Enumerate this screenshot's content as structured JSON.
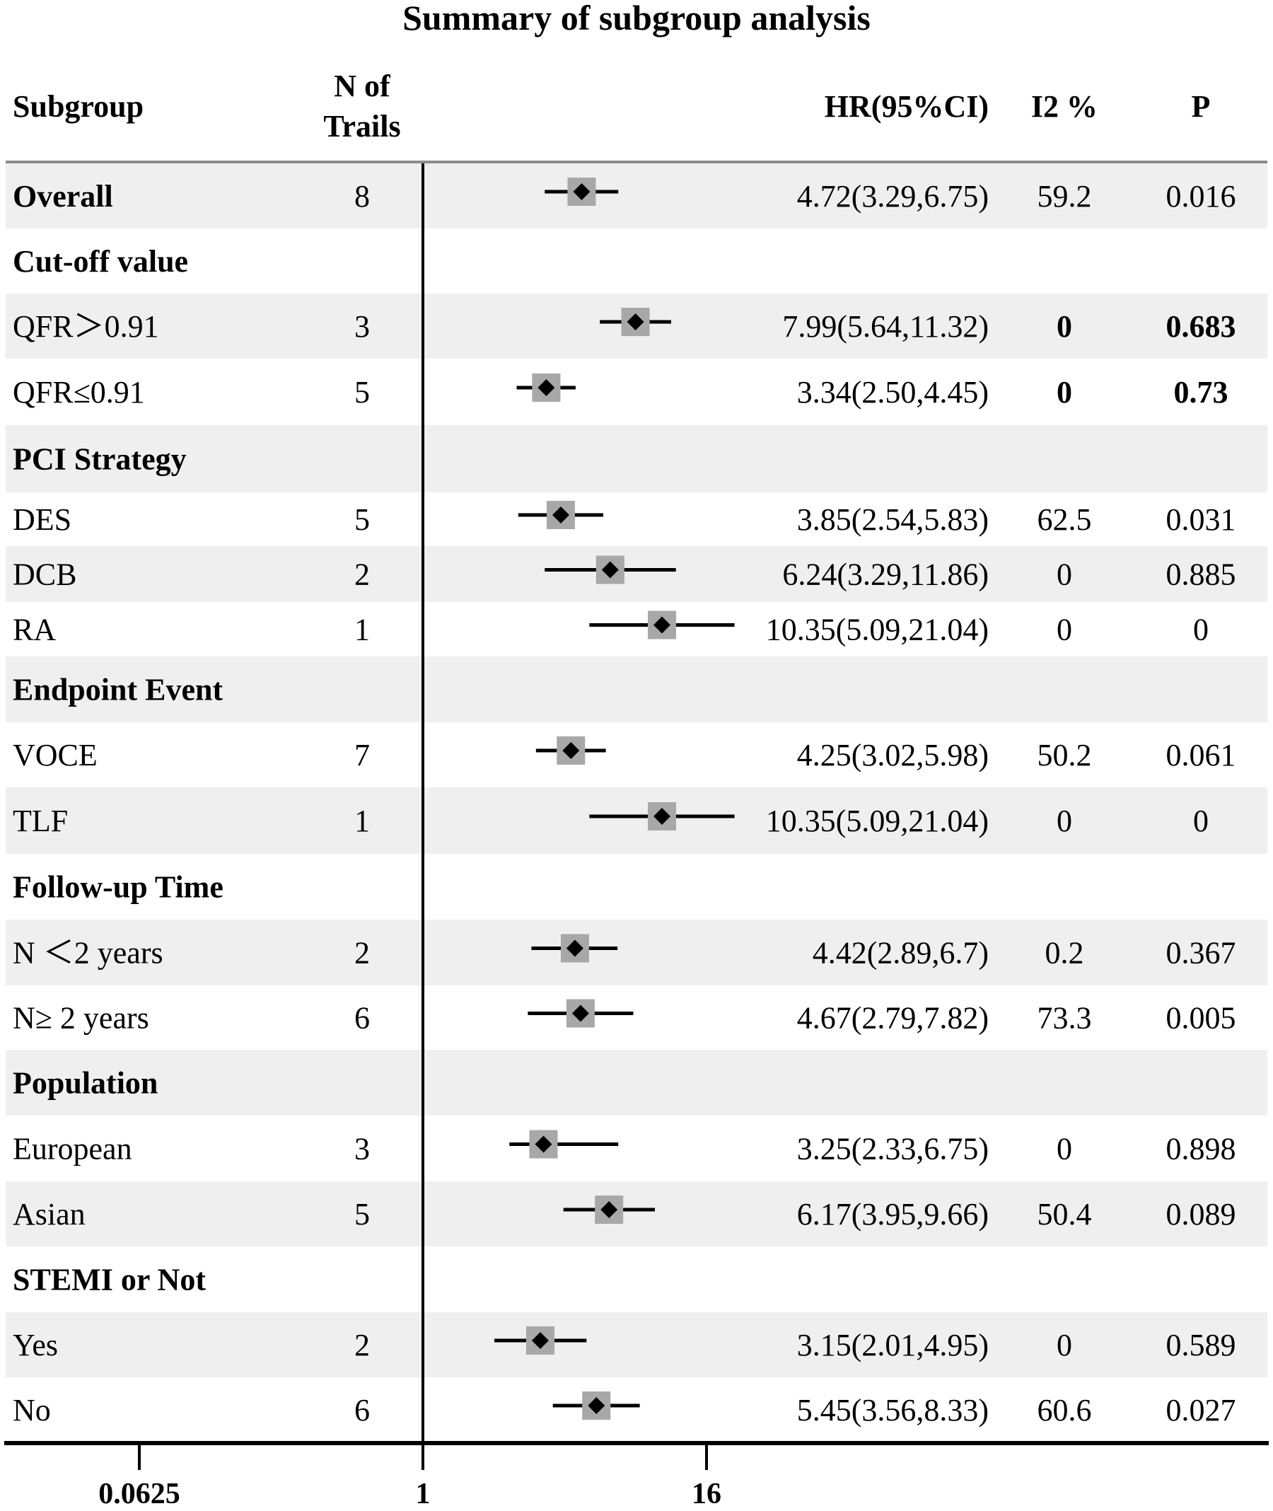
{
  "chart_data": {
    "type": "forest",
    "title": "Summary of subgroup analysis",
    "columns": {
      "subgroup": "Subgroup",
      "n_line1": "N of",
      "n_line2": "Trails",
      "hr": "HR(95%CI)",
      "i2": "I2 %",
      "p": "P"
    },
    "x_axis": {
      "scale": "log2",
      "reference": 1,
      "ticks": [
        "0.0625",
        "1",
        "16"
      ],
      "tick_values": [
        0.0625,
        1,
        16
      ]
    },
    "rows": [
      {
        "label": "Overall",
        "header": false,
        "bold_label": true,
        "n": "8",
        "hr": 4.72,
        "lo": 3.29,
        "hi": 6.75,
        "hr_text": "4.72(3.29,6.75)",
        "i2": "59.2",
        "p": "0.016",
        "bold_stats": false,
        "shaded": true
      },
      {
        "label": "Cut-off value",
        "header": true,
        "shaded": false
      },
      {
        "label": "QFR＞0.91",
        "header": false,
        "n": "3",
        "hr": 7.99,
        "lo": 5.64,
        "hi": 11.32,
        "hr_text": "7.99(5.64,11.32)",
        "i2": "0",
        "p": "0.683",
        "bold_stats": true,
        "shaded": true
      },
      {
        "label": "QFR≤0.91",
        "header": false,
        "n": "5",
        "hr": 3.34,
        "lo": 2.5,
        "hi": 4.45,
        "hr_text": "3.34(2.50,4.45)",
        "i2": "0",
        "p": "0.73",
        "bold_stats": true,
        "shaded": false
      },
      {
        "label": "PCI Strategy",
        "header": true,
        "shaded": true
      },
      {
        "label": "DES",
        "header": false,
        "n": "5",
        "hr": 3.85,
        "lo": 2.54,
        "hi": 5.83,
        "hr_text": "3.85(2.54,5.83)",
        "i2": "62.5",
        "p": "0.031",
        "bold_stats": false,
        "shaded": false
      },
      {
        "label": "DCB",
        "header": false,
        "n": "2",
        "hr": 6.24,
        "lo": 3.29,
        "hi": 11.86,
        "hr_text": "6.24(3.29,11.86)",
        "i2": "0",
        "p": "0.885",
        "bold_stats": false,
        "shaded": true
      },
      {
        "label": "RA",
        "header": false,
        "n": "1",
        "hr": 10.35,
        "lo": 5.09,
        "hi": 21.04,
        "hr_text": "10.35(5.09,21.04)",
        "i2": "0",
        "p": "0",
        "bold_stats": false,
        "shaded": false
      },
      {
        "label": "Endpoint Event",
        "header": true,
        "shaded": true
      },
      {
        "label": "VOCE",
        "header": false,
        "n": "7",
        "hr": 4.25,
        "lo": 3.02,
        "hi": 5.98,
        "hr_text": "4.25(3.02,5.98)",
        "i2": "50.2",
        "p": "0.061",
        "bold_stats": false,
        "shaded": false
      },
      {
        "label": "TLF",
        "header": false,
        "n": "1",
        "hr": 10.35,
        "lo": 5.09,
        "hi": 21.04,
        "hr_text": "10.35(5.09,21.04)",
        "i2": "0",
        "p": "0",
        "bold_stats": false,
        "shaded": true
      },
      {
        "label": "Follow-up Time",
        "header": true,
        "shaded": false
      },
      {
        "label": "N ＜2 years",
        "header": false,
        "n": "2",
        "hr": 4.42,
        "lo": 2.89,
        "hi": 6.7,
        "hr_text": "4.42(2.89,6.7)",
        "i2": "0.2",
        "p": "0.367",
        "bold_stats": false,
        "shaded": true
      },
      {
        "label": "N≥ 2 years",
        "header": false,
        "n": "6",
        "hr": 4.67,
        "lo": 2.79,
        "hi": 7.82,
        "hr_text": "4.67(2.79,7.82)",
        "i2": "73.3",
        "p": "0.005",
        "bold_stats": false,
        "shaded": false
      },
      {
        "label": "Population",
        "header": true,
        "shaded": true
      },
      {
        "label": "European",
        "header": false,
        "n": "3",
        "hr": 3.25,
        "lo": 2.33,
        "hi": 6.75,
        "hr_text": "3.25(2.33,6.75)",
        "i2": "0",
        "p": "0.898",
        "bold_stats": false,
        "shaded": false
      },
      {
        "label": "Asian",
        "header": false,
        "n": "5",
        "hr": 6.17,
        "lo": 3.95,
        "hi": 9.66,
        "hr_text": "6.17(3.95,9.66)",
        "i2": "50.4",
        "p": "0.089",
        "bold_stats": false,
        "shaded": true
      },
      {
        "label": "STEMI or Not",
        "header": true,
        "shaded": false
      },
      {
        "label": "Yes",
        "header": false,
        "n": "2",
        "hr": 3.15,
        "lo": 2.01,
        "hi": 4.95,
        "hr_text": "3.15(2.01,4.95)",
        "i2": "0",
        "p": "0.589",
        "bold_stats": false,
        "shaded": true
      },
      {
        "label": "No",
        "header": false,
        "n": "6",
        "hr": 5.45,
        "lo": 3.56,
        "hi": 8.33,
        "hr_text": "5.45(3.56,8.33)",
        "i2": "60.6",
        "p": "0.027",
        "bold_stats": false,
        "shaded": false
      }
    ]
  },
  "colors": {
    "shade": "#efefef",
    "box": "#a8a8a8",
    "ink": "#000000",
    "header_rule": "#8c8c8c"
  }
}
